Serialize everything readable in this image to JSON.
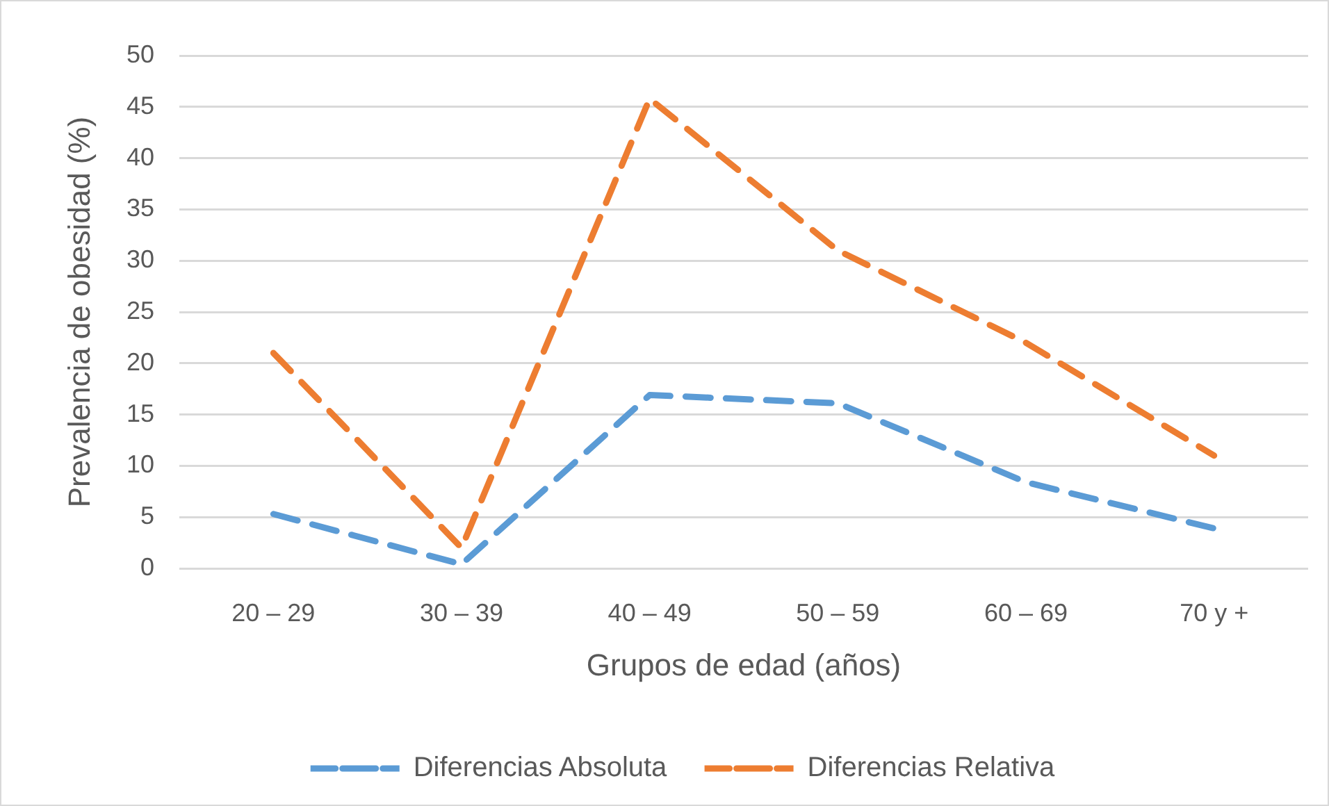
{
  "chart_data": {
    "type": "line",
    "xlabel": "Grupos de edad (años)",
    "ylabel": "Prevalencia de obesidad (%)",
    "categories": [
      "20 – 29",
      "30 – 39",
      "40 – 49",
      "50 – 59",
      "60 – 69",
      "70 y +"
    ],
    "series": [
      {
        "name": "Diferencias Absoluta",
        "color": "#5b9bd5",
        "values": [
          5.3,
          0.4,
          16.9,
          16.1,
          8.4,
          3.9
        ]
      },
      {
        "name": "Diferencias Relativa",
        "color": "#ed7d31",
        "values": [
          21,
          2,
          45.8,
          31,
          22,
          11
        ]
      }
    ],
    "ylim": [
      0,
      50
    ],
    "yticks": [
      0,
      5,
      10,
      15,
      20,
      25,
      30,
      35,
      40,
      45,
      50
    ],
    "grid": "y",
    "legend": "bottom",
    "marker": "none",
    "line_style": "dashed"
  }
}
